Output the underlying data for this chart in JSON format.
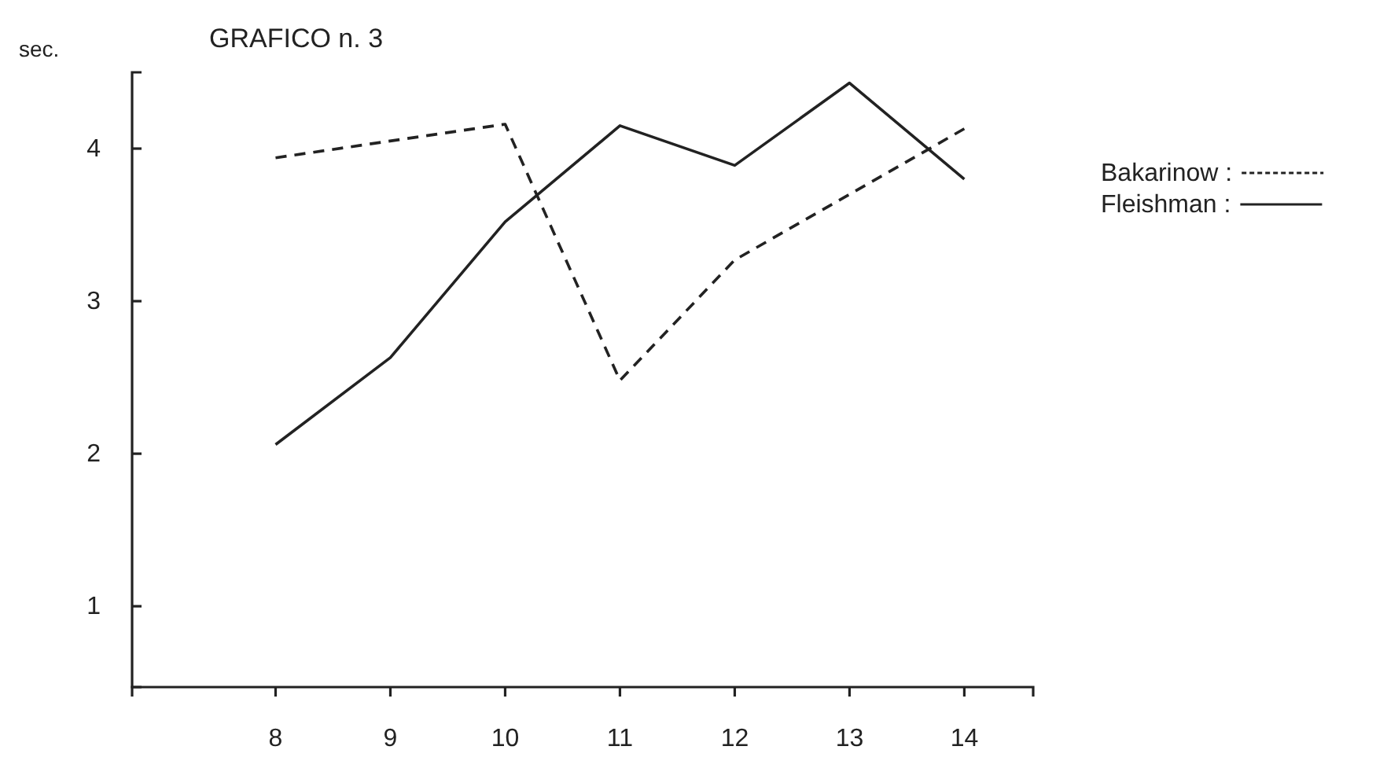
{
  "chart_data": {
    "type": "line",
    "title": "GRAFICO n. 3",
    "ylabel": "sec.",
    "xlim": [
      6.75,
      14.6
    ],
    "ylim": [
      0.47,
      4.5
    ],
    "xticks": [
      8,
      9,
      10,
      11,
      12,
      13,
      14
    ],
    "yticks": [
      1,
      2,
      3,
      4
    ],
    "legend": "right",
    "series": [
      {
        "name": "Bakarinow :",
        "color": "#222222",
        "line_style": "dashed",
        "x": [
          8,
          10,
          11,
          12,
          14
        ],
        "values": [
          3.94,
          4.16,
          2.48,
          3.27,
          4.13
        ]
      },
      {
        "name": "Fleishman :",
        "color": "#222222",
        "line_style": "solid",
        "x": [
          8,
          9,
          10,
          11,
          12,
          13,
          14
        ],
        "values": [
          2.06,
          2.63,
          3.52,
          4.15,
          3.89,
          4.43,
          3.8
        ]
      }
    ]
  }
}
